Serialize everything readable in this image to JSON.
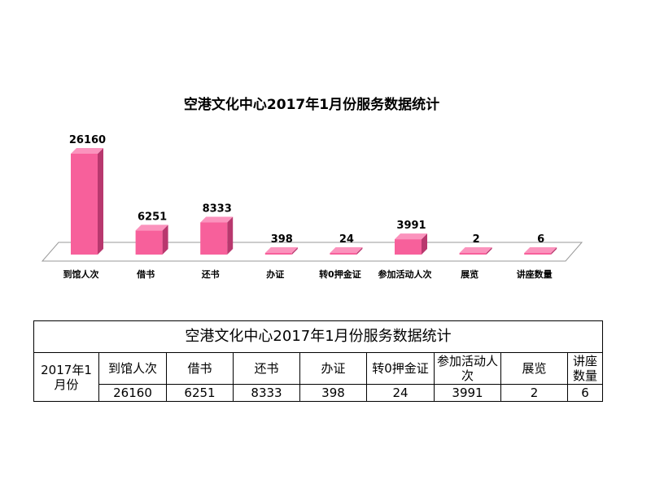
{
  "chart_data": {
    "type": "bar",
    "title": "空港文化中心2017年1月份服务数据统计",
    "categories": [
      "到馆人次",
      "借书",
      "还书",
      "办证",
      "转0押金证",
      "参加活动人次",
      "展览",
      "讲座数量"
    ],
    "values": [
      26160,
      6251,
      8333,
      398,
      24,
      3991,
      2,
      6
    ],
    "value_labels": [
      "26160",
      "6251",
      "8333",
      "398",
      "24",
      "3991",
      "2",
      "6"
    ],
    "xlabel": "",
    "ylabel": "",
    "ylim": [
      0,
      26160
    ],
    "grid": false,
    "legend": "none",
    "style": "3d-bar",
    "bar_color": "#F7609B"
  },
  "colors": {
    "bar_front": "#F7609B",
    "bar_top": "#FB93BD",
    "bar_side": "#B8386E",
    "floor": "#FFFFFF",
    "floor_edge": "#999999"
  },
  "table": {
    "title": "空港文化中心2017年1月份服务数据统计",
    "row_label": "2017年1月份",
    "headers": [
      "到馆人次",
      "借书",
      "还书",
      "办证",
      "转0押金证",
      "参加活动人次",
      "展览",
      "讲座数量"
    ],
    "values": [
      "26160",
      "6251",
      "8333",
      "398",
      "24",
      "3991",
      "2",
      "6"
    ]
  }
}
